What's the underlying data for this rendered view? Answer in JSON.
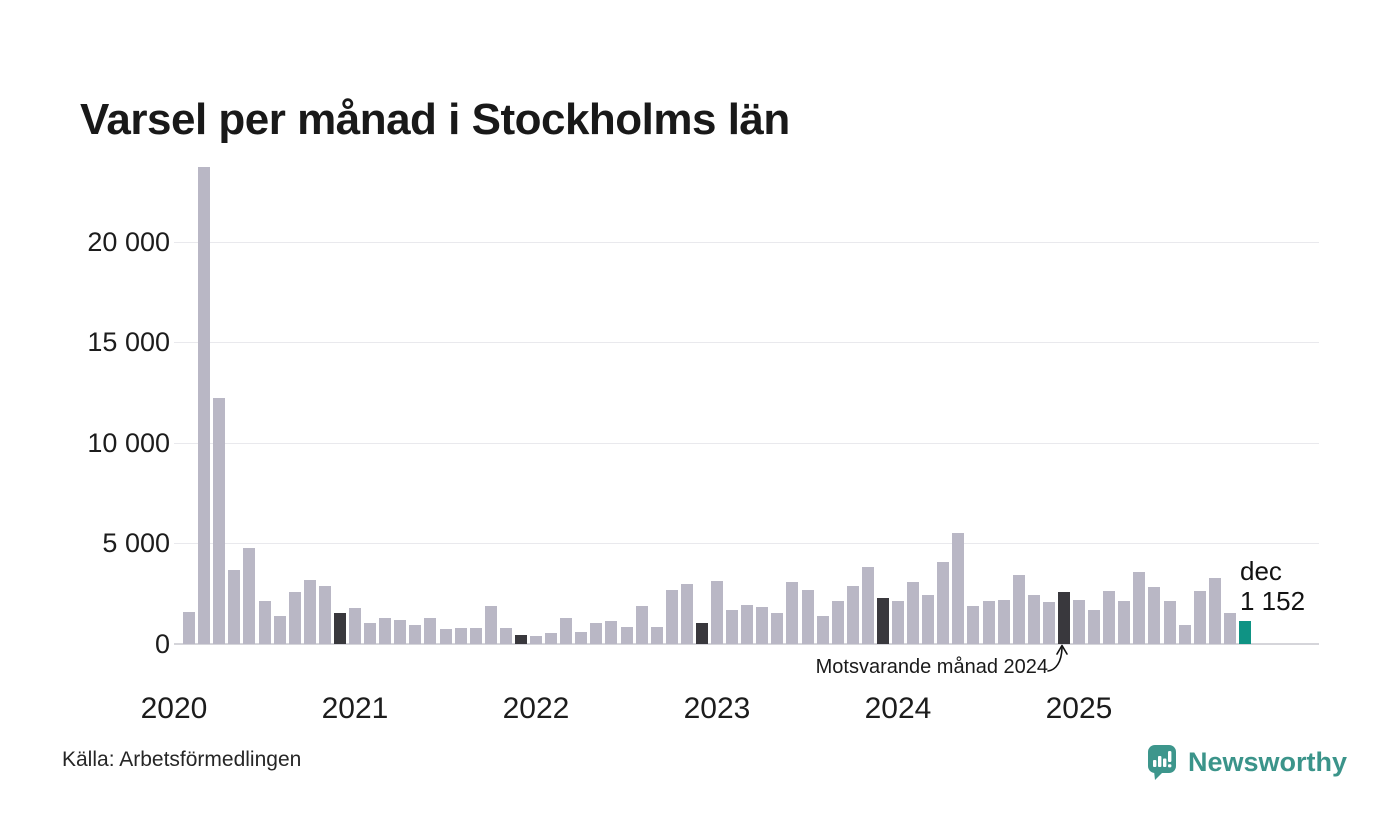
{
  "title": "Varsel per månad i Stockholms län",
  "source": "Källa: Arbetsförmedlingen",
  "brand": {
    "name": "Newsworthy",
    "color": "#3b948a"
  },
  "annotation": {
    "text": "Motsvarande månad 2024"
  },
  "current_label": {
    "line1": "dec",
    "line2": "1 152"
  },
  "colors": {
    "bar": "#b9b7c5",
    "compare_month": "#39383d",
    "current_month": "#0f9384",
    "gridline": "#e9e9ed",
    "baseline": "#d5d5da",
    "text": "#1a1a1a"
  },
  "chart_data": {
    "type": "bar",
    "title": "Varsel per månad i Stockholms län",
    "xlabel": "",
    "ylabel": "",
    "ylim": [
      0,
      24200
    ],
    "grid": "horizontal",
    "y_ticks": [
      0,
      5000,
      10000,
      15000,
      20000
    ],
    "y_tick_labels": [
      "0",
      "5 000",
      "10 000",
      "15 000",
      "20 000"
    ],
    "x_tick_labels": [
      "2020",
      "2021",
      "2022",
      "2023",
      "2024",
      "2025"
    ],
    "first_month": "2020-02",
    "months": [
      {
        "label": "2020-02",
        "value": 1600,
        "role": "normal"
      },
      {
        "label": "2020-03",
        "value": 23700,
        "role": "normal"
      },
      {
        "label": "2020-04",
        "value": 12250,
        "role": "normal"
      },
      {
        "label": "2020-05",
        "value": 3700,
        "role": "normal"
      },
      {
        "label": "2020-06",
        "value": 4750,
        "role": "normal"
      },
      {
        "label": "2020-07",
        "value": 2150,
        "role": "normal"
      },
      {
        "label": "2020-08",
        "value": 1400,
        "role": "normal"
      },
      {
        "label": "2020-09",
        "value": 2600,
        "role": "normal"
      },
      {
        "label": "2020-10",
        "value": 3200,
        "role": "normal"
      },
      {
        "label": "2020-11",
        "value": 2900,
        "role": "normal"
      },
      {
        "label": "2020-12",
        "value": 1550,
        "role": "compare"
      },
      {
        "label": "2021-01",
        "value": 1800,
        "role": "normal"
      },
      {
        "label": "2021-02",
        "value": 1070,
        "role": "normal"
      },
      {
        "label": "2021-03",
        "value": 1270,
        "role": "normal"
      },
      {
        "label": "2021-04",
        "value": 1220,
        "role": "normal"
      },
      {
        "label": "2021-05",
        "value": 970,
        "role": "normal"
      },
      {
        "label": "2021-06",
        "value": 1270,
        "role": "normal"
      },
      {
        "label": "2021-07",
        "value": 745,
        "role": "normal"
      },
      {
        "label": "2021-08",
        "value": 775,
        "role": "normal"
      },
      {
        "label": "2021-09",
        "value": 775,
        "role": "normal"
      },
      {
        "label": "2021-10",
        "value": 1870,
        "role": "normal"
      },
      {
        "label": "2021-11",
        "value": 810,
        "role": "normal"
      },
      {
        "label": "2021-12",
        "value": 430,
        "role": "compare"
      },
      {
        "label": "2022-01",
        "value": 410,
        "role": "normal"
      },
      {
        "label": "2022-02",
        "value": 530,
        "role": "normal"
      },
      {
        "label": "2022-03",
        "value": 1290,
        "role": "normal"
      },
      {
        "label": "2022-04",
        "value": 610,
        "role": "normal"
      },
      {
        "label": "2022-05",
        "value": 1040,
        "role": "normal"
      },
      {
        "label": "2022-06",
        "value": 1160,
        "role": "normal"
      },
      {
        "label": "2022-07",
        "value": 860,
        "role": "normal"
      },
      {
        "label": "2022-08",
        "value": 1900,
        "role": "normal"
      },
      {
        "label": "2022-09",
        "value": 860,
        "role": "normal"
      },
      {
        "label": "2022-10",
        "value": 2680,
        "role": "normal"
      },
      {
        "label": "2022-11",
        "value": 2980,
        "role": "normal"
      },
      {
        "label": "2022-12",
        "value": 1040,
        "role": "compare"
      },
      {
        "label": "2023-01",
        "value": 3110,
        "role": "normal"
      },
      {
        "label": "2023-02",
        "value": 1690,
        "role": "normal"
      },
      {
        "label": "2023-03",
        "value": 1950,
        "role": "normal"
      },
      {
        "label": "2023-04",
        "value": 1820,
        "role": "normal"
      },
      {
        "label": "2023-05",
        "value": 1540,
        "role": "normal"
      },
      {
        "label": "2023-06",
        "value": 3100,
        "role": "normal"
      },
      {
        "label": "2023-07",
        "value": 2700,
        "role": "normal"
      },
      {
        "label": "2023-08",
        "value": 1390,
        "role": "normal"
      },
      {
        "label": "2023-09",
        "value": 2120,
        "role": "normal"
      },
      {
        "label": "2023-10",
        "value": 2880,
        "role": "normal"
      },
      {
        "label": "2023-11",
        "value": 3840,
        "role": "normal"
      },
      {
        "label": "2023-12",
        "value": 2290,
        "role": "compare"
      },
      {
        "label": "2024-01",
        "value": 2140,
        "role": "normal"
      },
      {
        "label": "2024-02",
        "value": 3080,
        "role": "normal"
      },
      {
        "label": "2024-03",
        "value": 2450,
        "role": "normal"
      },
      {
        "label": "2024-04",
        "value": 4100,
        "role": "normal"
      },
      {
        "label": "2024-05",
        "value": 5520,
        "role": "normal"
      },
      {
        "label": "2024-06",
        "value": 1900,
        "role": "normal"
      },
      {
        "label": "2024-07",
        "value": 2150,
        "role": "normal"
      },
      {
        "label": "2024-08",
        "value": 2200,
        "role": "normal"
      },
      {
        "label": "2024-09",
        "value": 3440,
        "role": "normal"
      },
      {
        "label": "2024-10",
        "value": 2420,
        "role": "normal"
      },
      {
        "label": "2024-11",
        "value": 2100,
        "role": "normal"
      },
      {
        "label": "2024-12",
        "value": 2600,
        "role": "compare"
      },
      {
        "label": "2025-01",
        "value": 2190,
        "role": "normal"
      },
      {
        "label": "2025-02",
        "value": 1700,
        "role": "normal"
      },
      {
        "label": "2025-03",
        "value": 2630,
        "role": "normal"
      },
      {
        "label": "2025-04",
        "value": 2130,
        "role": "normal"
      },
      {
        "label": "2025-05",
        "value": 3570,
        "role": "normal"
      },
      {
        "label": "2025-06",
        "value": 2820,
        "role": "normal"
      },
      {
        "label": "2025-07",
        "value": 2160,
        "role": "normal"
      },
      {
        "label": "2025-08",
        "value": 950,
        "role": "normal"
      },
      {
        "label": "2025-09",
        "value": 2660,
        "role": "normal"
      },
      {
        "label": "2025-10",
        "value": 3270,
        "role": "normal"
      },
      {
        "label": "2025-11",
        "value": 1560,
        "role": "normal"
      },
      {
        "label": "2025-12",
        "value": 1152,
        "role": "current"
      }
    ],
    "legend": "none",
    "annotations": [
      "Motsvarande månad 2024",
      "dec 1 152"
    ]
  }
}
